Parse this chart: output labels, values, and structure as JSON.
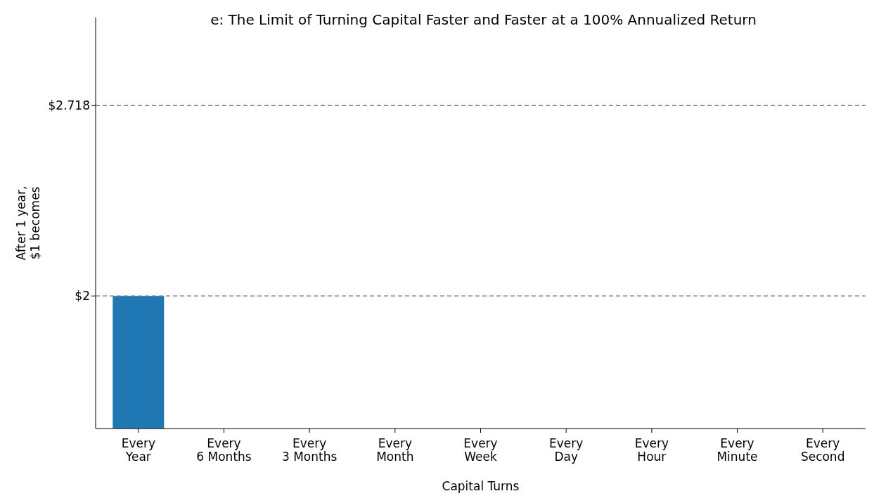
{
  "chart_data": {
    "type": "bar",
    "title": "e: The Limit of Turning Capital Faster and Faster at a 100% Annualized Return",
    "xlabel": "Capital Turns",
    "ylabel": "After 1 year,\n$1 becomes",
    "categories": [
      "Every\nYear",
      "Every\n6 Months",
      "Every\n3 Months",
      "Every\nMonth",
      "Every\nWeek",
      "Every\nDay",
      "Every\nHour",
      "Every\nMinute",
      "Every\nSecond"
    ],
    "values": [
      2,
      null,
      null,
      null,
      null,
      null,
      null,
      null,
      null
    ],
    "color": "#1f77b4",
    "ylim": [
      1.5,
      3.05
    ],
    "yticks": [
      {
        "value": 2,
        "label": "$2"
      },
      {
        "value": 2.718,
        "label": "$2.718"
      }
    ],
    "ref_lines": [
      {
        "axis": "y",
        "value": 2,
        "color": "#808080",
        "line_style": "dashed"
      },
      {
        "axis": "y",
        "value": 2.718,
        "color": "#808080",
        "line_style": "dashed"
      }
    ],
    "grid": false,
    "legend": false
  }
}
